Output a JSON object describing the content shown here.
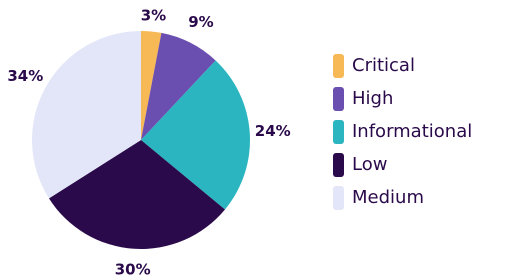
{
  "chart_data": {
    "type": "pie",
    "categories": [
      "Critical",
      "High",
      "Informational",
      "Low",
      "Medium"
    ],
    "values": [
      3,
      9,
      24,
      30,
      34
    ],
    "value_labels": [
      "3%",
      "9%",
      "24%",
      "30%",
      "34%"
    ],
    "colors": [
      "#f7b955",
      "#6a4fb0",
      "#2ab5c0",
      "#2a0a4a",
      "#e3e6f8"
    ],
    "legend": "right"
  }
}
